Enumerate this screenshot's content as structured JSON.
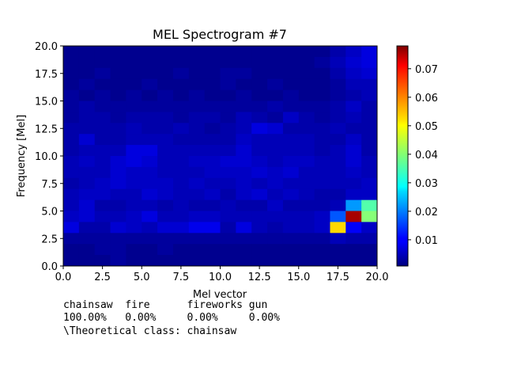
{
  "chart_data": {
    "type": "heatmap",
    "title": "MEL Spectrogram #7",
    "xlabel": "Mel vector",
    "ylabel": "Frequency [Mel]",
    "xlim": [
      0,
      20
    ],
    "ylim": [
      0,
      20
    ],
    "xticks": [
      "0.0",
      "2.5",
      "5.0",
      "7.5",
      "10.0",
      "12.5",
      "15.0",
      "17.5",
      "20.0"
    ],
    "yticks": [
      "0.0",
      "2.5",
      "5.0",
      "7.5",
      "10.0",
      "12.5",
      "15.0",
      "17.5",
      "20.0"
    ],
    "colormap": "jet",
    "colorbar": {
      "min": 0.0008,
      "max": 0.078,
      "ticks": [
        "0.01",
        "0.02",
        "0.03",
        "0.04",
        "0.05",
        "0.06",
        "0.07"
      ],
      "tick_values": [
        0.01,
        0.02,
        0.03,
        0.04,
        0.05,
        0.06,
        0.07
      ]
    },
    "grid": false,
    "rows_description": "row index 0 = top (y 19-20), row 19 = bottom (y 0-1); each row has 20 columns x 0..19",
    "values": [
      [
        0.002,
        0.002,
        0.002,
        0.002,
        0.002,
        0.002,
        0.002,
        0.002,
        0.002,
        0.002,
        0.002,
        0.002,
        0.002,
        0.002,
        0.002,
        0.002,
        0.002,
        0.004,
        0.006,
        0.008
      ],
      [
        0.002,
        0.002,
        0.002,
        0.002,
        0.002,
        0.002,
        0.002,
        0.002,
        0.002,
        0.002,
        0.002,
        0.002,
        0.002,
        0.002,
        0.002,
        0.002,
        0.003,
        0.005,
        0.007,
        0.008
      ],
      [
        0.002,
        0.002,
        0.003,
        0.002,
        0.002,
        0.002,
        0.002,
        0.003,
        0.002,
        0.002,
        0.003,
        0.003,
        0.002,
        0.002,
        0.002,
        0.002,
        0.002,
        0.004,
        0.006,
        0.007
      ],
      [
        0.002,
        0.003,
        0.002,
        0.002,
        0.002,
        0.003,
        0.002,
        0.002,
        0.002,
        0.002,
        0.003,
        0.002,
        0.002,
        0.003,
        0.002,
        0.002,
        0.002,
        0.003,
        0.005,
        0.005
      ],
      [
        0.003,
        0.002,
        0.003,
        0.002,
        0.003,
        0.002,
        0.003,
        0.002,
        0.003,
        0.002,
        0.002,
        0.003,
        0.002,
        0.002,
        0.003,
        0.002,
        0.002,
        0.003,
        0.004,
        0.005
      ],
      [
        0.003,
        0.004,
        0.003,
        0.003,
        0.003,
        0.003,
        0.003,
        0.003,
        0.003,
        0.003,
        0.003,
        0.003,
        0.003,
        0.004,
        0.003,
        0.003,
        0.003,
        0.004,
        0.006,
        0.004
      ],
      [
        0.003,
        0.004,
        0.004,
        0.003,
        0.004,
        0.004,
        0.004,
        0.003,
        0.004,
        0.004,
        0.003,
        0.005,
        0.004,
        0.003,
        0.006,
        0.004,
        0.003,
        0.004,
        0.005,
        0.004
      ],
      [
        0.004,
        0.004,
        0.004,
        0.004,
        0.005,
        0.004,
        0.004,
        0.005,
        0.004,
        0.003,
        0.004,
        0.005,
        0.008,
        0.007,
        0.004,
        0.004,
        0.004,
        0.005,
        0.004,
        0.004
      ],
      [
        0.004,
        0.007,
        0.004,
        0.004,
        0.005,
        0.005,
        0.005,
        0.004,
        0.004,
        0.004,
        0.004,
        0.006,
        0.005,
        0.005,
        0.005,
        0.005,
        0.004,
        0.004,
        0.006,
        0.004
      ],
      [
        0.004,
        0.005,
        0.005,
        0.005,
        0.008,
        0.008,
        0.005,
        0.005,
        0.005,
        0.005,
        0.005,
        0.007,
        0.005,
        0.005,
        0.005,
        0.005,
        0.004,
        0.005,
        0.007,
        0.004
      ],
      [
        0.005,
        0.006,
        0.005,
        0.007,
        0.008,
        0.007,
        0.005,
        0.005,
        0.006,
        0.006,
        0.007,
        0.007,
        0.006,
        0.005,
        0.006,
        0.006,
        0.005,
        0.005,
        0.007,
        0.005
      ],
      [
        0.005,
        0.005,
        0.005,
        0.007,
        0.006,
        0.006,
        0.005,
        0.005,
        0.005,
        0.006,
        0.006,
        0.006,
        0.007,
        0.006,
        0.007,
        0.005,
        0.005,
        0.005,
        0.006,
        0.005
      ],
      [
        0.004,
        0.005,
        0.006,
        0.007,
        0.006,
        0.006,
        0.006,
        0.005,
        0.006,
        0.005,
        0.005,
        0.006,
        0.005,
        0.006,
        0.005,
        0.005,
        0.005,
        0.005,
        0.005,
        0.006
      ],
      [
        0.005,
        0.006,
        0.006,
        0.005,
        0.005,
        0.007,
        0.006,
        0.005,
        0.005,
        0.006,
        0.004,
        0.006,
        0.007,
        0.005,
        0.006,
        0.005,
        0.004,
        0.004,
        0.006,
        0.006
      ],
      [
        0.005,
        0.007,
        0.004,
        0.004,
        0.005,
        0.005,
        0.004,
        0.005,
        0.004,
        0.004,
        0.005,
        0.004,
        0.004,
        0.006,
        0.004,
        0.004,
        0.004,
        0.005,
        0.022,
        0.036
      ],
      [
        0.006,
        0.007,
        0.005,
        0.005,
        0.006,
        0.008,
        0.005,
        0.005,
        0.006,
        0.006,
        0.005,
        0.005,
        0.005,
        0.005,
        0.005,
        0.005,
        0.006,
        0.017,
        0.075,
        0.04
      ],
      [
        0.008,
        0.004,
        0.004,
        0.007,
        0.006,
        0.005,
        0.007,
        0.007,
        0.009,
        0.009,
        0.004,
        0.008,
        0.005,
        0.004,
        0.005,
        0.005,
        0.006,
        0.052,
        0.01,
        0.006
      ],
      [
        0.003,
        0.003,
        0.003,
        0.003,
        0.003,
        0.003,
        0.003,
        0.003,
        0.003,
        0.003,
        0.003,
        0.003,
        0.003,
        0.003,
        0.003,
        0.003,
        0.003,
        0.005,
        0.004,
        0.004
      ],
      [
        0.002,
        0.002,
        0.003,
        0.003,
        0.002,
        0.002,
        0.003,
        0.002,
        0.002,
        0.002,
        0.002,
        0.002,
        0.002,
        0.002,
        0.002,
        0.002,
        0.002,
        0.002,
        0.002,
        0.002
      ],
      [
        0.002,
        0.002,
        0.002,
        0.003,
        0.002,
        0.002,
        0.002,
        0.002,
        0.002,
        0.002,
        0.002,
        0.002,
        0.002,
        0.002,
        0.002,
        0.002,
        0.002,
        0.002,
        0.002,
        0.002
      ]
    ]
  },
  "classification": {
    "header_line": "chainsaw  fire      fireworks gun",
    "values_line": "100.00%   0.00%     0.00%     0.00%",
    "theoretical_line": "\\Theoretical class: chainsaw"
  }
}
